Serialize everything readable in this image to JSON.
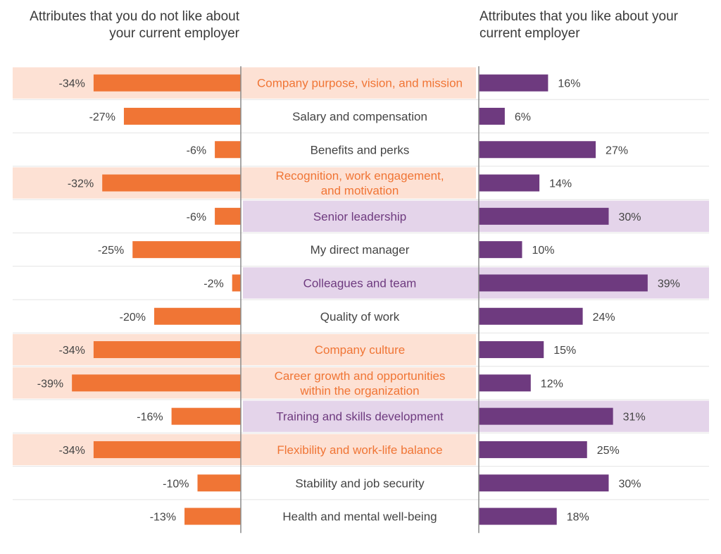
{
  "headers": {
    "left": [
      "Attributes that you do not like about",
      "your current employer"
    ],
    "right": [
      "Attributes that you like about your",
      "current employer"
    ]
  },
  "colors": {
    "dislike_bar": "#f07535",
    "like_bar": "#6e3a7f",
    "dislike_highlight_fill": "#fde1d4",
    "like_highlight_fill": "#e4d4ea",
    "dislike_highlight_text": "#f07535",
    "like_highlight_text": "#6e3a7f",
    "label_text": "#444444",
    "divider": "#e4e4e4",
    "axis": "#8a8a8a"
  },
  "chart_data": {
    "type": "bar",
    "orientation": "horizontal-diverging",
    "categories": [
      [
        "Company purpose, vision, and mission"
      ],
      [
        "Salary and compensation"
      ],
      [
        "Benefits and perks"
      ],
      [
        "Recognition, work engagement,",
        "and motivation"
      ],
      [
        "Senior leadership"
      ],
      [
        "My direct manager"
      ],
      [
        "Colleagues and team"
      ],
      [
        "Quality of work"
      ],
      [
        "Company culture"
      ],
      [
        "Career growth and opportunities",
        "within the organization"
      ],
      [
        "Training and skills development"
      ],
      [
        "Flexibility and work-life balance"
      ],
      [
        "Stability and job security"
      ],
      [
        "Health and mental well-being"
      ]
    ],
    "series": [
      {
        "values": [
          -34,
          -27,
          -6,
          -32,
          -6,
          -25,
          -2,
          -20,
          -34,
          -39,
          -16,
          -34,
          -10,
          -13
        ],
        "labels": [
          "-34%",
          "-27%",
          "-6%",
          "-32%",
          "-6%",
          "-25%",
          "-2%",
          "-20%",
          "-34%",
          "-39%",
          "-16%",
          "-34%",
          "-10%",
          "-13%"
        ]
      },
      {
        "values": [
          16,
          6,
          27,
          14,
          30,
          10,
          39,
          24,
          15,
          12,
          31,
          25,
          30,
          18
        ],
        "labels": [
          "16%",
          "6%",
          "27%",
          "14%",
          "30%",
          "10%",
          "39%",
          "24%",
          "15%",
          "12%",
          "31%",
          "25%",
          "30%",
          "18%"
        ]
      }
    ],
    "highlight": [
      "dislike",
      "none",
      "none",
      "dislike",
      "like",
      "none",
      "like",
      "none",
      "dislike",
      "dislike",
      "like",
      "dislike",
      "none",
      "none"
    ],
    "xlim": [
      -40,
      40
    ],
    "unit": "%"
  }
}
